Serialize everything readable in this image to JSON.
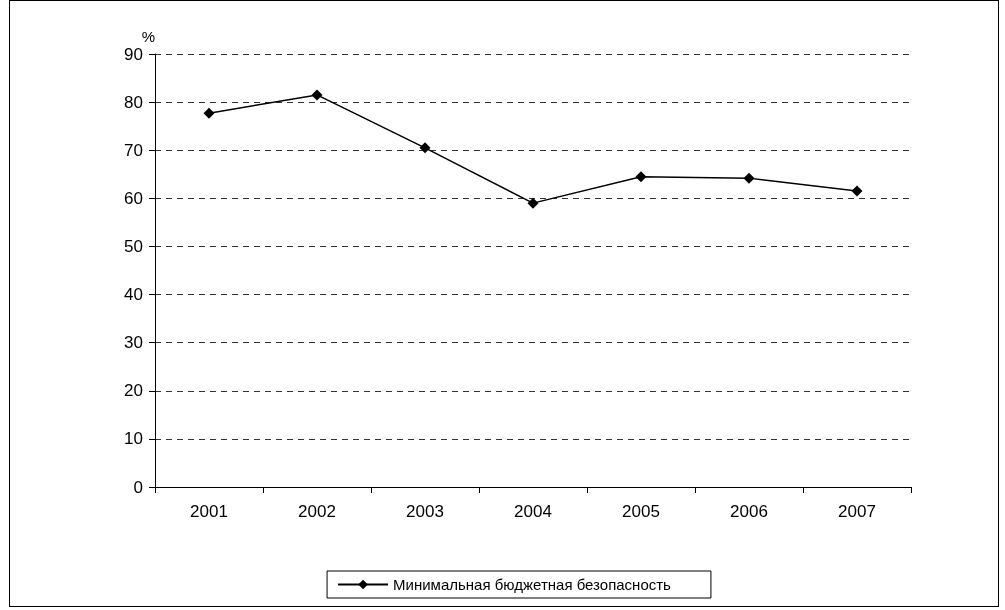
{
  "chart_data": {
    "type": "line",
    "ylabel": "%",
    "categories": [
      "2001",
      "2002",
      "2003",
      "2004",
      "2005",
      "2006",
      "2007"
    ],
    "series": [
      {
        "name": "Минимальная бюджетная безопасность",
        "color": "#000000",
        "values": [
          77.7,
          81.5,
          70.5,
          59.0,
          64.5,
          64.2,
          61.5
        ]
      }
    ],
    "ylim": [
      0,
      90
    ],
    "yticks": [
      0,
      10,
      20,
      30,
      40,
      50,
      60,
      70,
      80,
      90
    ],
    "grid": "y",
    "legend": "bottom",
    "marker": "diamond",
    "line_style": "solid"
  }
}
